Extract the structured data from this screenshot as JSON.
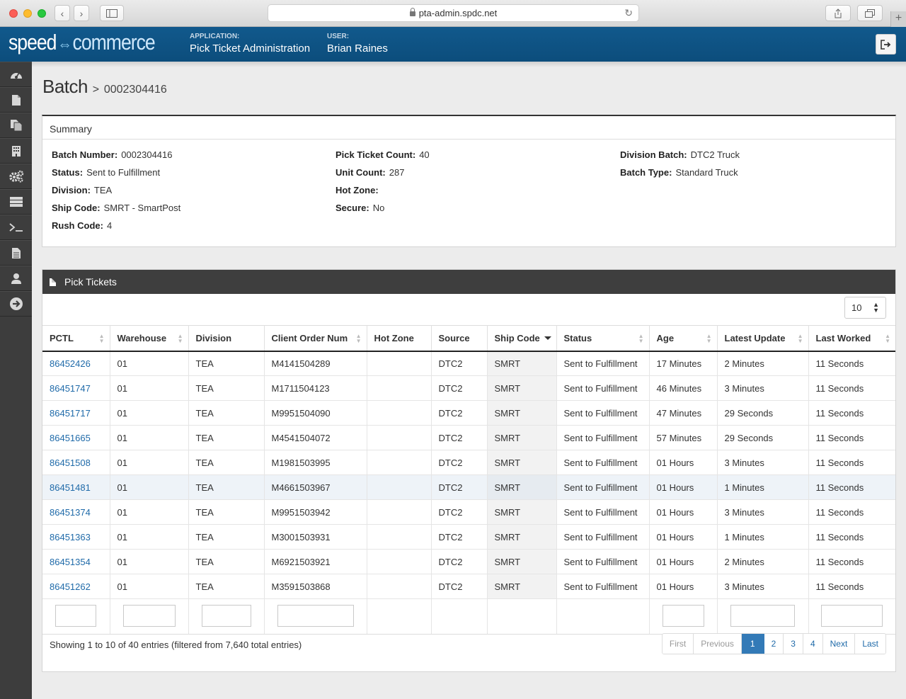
{
  "browser": {
    "url": "pta-admin.spdc.net",
    "new_tab": "+"
  },
  "header": {
    "logo_a": "speed",
    "logo_b": "commerce",
    "app_label": "APPLICATION:",
    "app_value": "Pick Ticket Administration",
    "user_label": "USER:",
    "user_value": "Brian Raines"
  },
  "breadcrumb": {
    "root": "Batch",
    "sep": ">",
    "current": "0002304416"
  },
  "summary": {
    "title": "Summary",
    "col1": [
      {
        "label": "Batch Number:",
        "value": "0002304416"
      },
      {
        "label": "Status:",
        "value": "Sent to Fulfillment"
      },
      {
        "label": "Division:",
        "value": "TEA"
      },
      {
        "label": "Ship Code:",
        "value": "SMRT - SmartPost"
      },
      {
        "label": "Rush Code:",
        "value": "4"
      }
    ],
    "col2": [
      {
        "label": "Pick Ticket Count:",
        "value": "40"
      },
      {
        "label": "Unit Count:",
        "value": "287"
      },
      {
        "label": "Hot Zone:",
        "value": ""
      },
      {
        "label": "Secure:",
        "value": "No"
      }
    ],
    "col3": [
      {
        "label": "Division Batch:",
        "value": "DTC2 Truck"
      },
      {
        "label": "Batch Type:",
        "value": "Standard Truck"
      }
    ]
  },
  "pick_tickets": {
    "title": "Pick Tickets",
    "page_length": "10",
    "columns": [
      "PCTL",
      "Warehouse",
      "Division",
      "Client Order Num",
      "Hot Zone",
      "Source",
      "Ship Code",
      "Status",
      "Age",
      "Latest Update",
      "Last Worked"
    ],
    "rows": [
      [
        "86452426",
        "01",
        "TEA",
        "M4141504289",
        "",
        "DTC2",
        "SMRT",
        "Sent to Fulfillment",
        "17 Minutes",
        "2 Minutes",
        "11 Seconds"
      ],
      [
        "86451747",
        "01",
        "TEA",
        "M1711504123",
        "",
        "DTC2",
        "SMRT",
        "Sent to Fulfillment",
        "46 Minutes",
        "3 Minutes",
        "11 Seconds"
      ],
      [
        "86451717",
        "01",
        "TEA",
        "M9951504090",
        "",
        "DTC2",
        "SMRT",
        "Sent to Fulfillment",
        "47 Minutes",
        "29 Seconds",
        "11 Seconds"
      ],
      [
        "86451665",
        "01",
        "TEA",
        "M4541504072",
        "",
        "DTC2",
        "SMRT",
        "Sent to Fulfillment",
        "57 Minutes",
        "29 Seconds",
        "11 Seconds"
      ],
      [
        "86451508",
        "01",
        "TEA",
        "M1981503995",
        "",
        "DTC2",
        "SMRT",
        "Sent to Fulfillment",
        "01 Hours",
        "3 Minutes",
        "11 Seconds"
      ],
      [
        "86451481",
        "01",
        "TEA",
        "M4661503967",
        "",
        "DTC2",
        "SMRT",
        "Sent to Fulfillment",
        "01 Hours",
        "1 Minutes",
        "11 Seconds"
      ],
      [
        "86451374",
        "01",
        "TEA",
        "M9951503942",
        "",
        "DTC2",
        "SMRT",
        "Sent to Fulfillment",
        "01 Hours",
        "3 Minutes",
        "11 Seconds"
      ],
      [
        "86451363",
        "01",
        "TEA",
        "M3001503931",
        "",
        "DTC2",
        "SMRT",
        "Sent to Fulfillment",
        "01 Hours",
        "1 Minutes",
        "11 Seconds"
      ],
      [
        "86451354",
        "01",
        "TEA",
        "M6921503921",
        "",
        "DTC2",
        "SMRT",
        "Sent to Fulfillment",
        "01 Hours",
        "2 Minutes",
        "11 Seconds"
      ],
      [
        "86451262",
        "01",
        "TEA",
        "M3591503868",
        "",
        "DTC2",
        "SMRT",
        "Sent to Fulfillment",
        "01 Hours",
        "3 Minutes",
        "11 Seconds"
      ]
    ],
    "info": "Showing 1 to 10 of 40 entries (filtered from 7,640 total entries)",
    "pager": {
      "first": "First",
      "previous": "Previous",
      "pages": [
        "1",
        "2",
        "3",
        "4"
      ],
      "next": "Next",
      "last": "Last"
    }
  },
  "sidebar_icons": [
    "dashboard-icon",
    "file-icon",
    "copy-icon",
    "building-icon",
    "cogs-icon",
    "server-icon",
    "terminal-icon",
    "file-text-icon",
    "user-icon",
    "arrow-circle-right-icon"
  ],
  "colors": {
    "header": "#0c4d7c",
    "link": "#1f6aa9",
    "active_page": "#337ab7",
    "sidebar": "#3d3d3d"
  }
}
